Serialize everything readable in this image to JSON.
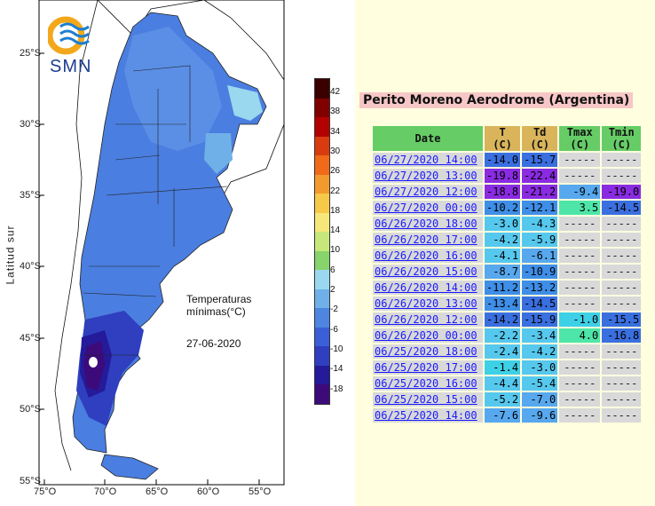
{
  "map": {
    "y_axis_label": "Latitud sur",
    "lat_ticks": [
      "25°S",
      "30°S",
      "35°S",
      "40°S",
      "45°S",
      "50°S",
      "55°S"
    ],
    "lon_ticks": [
      "75°O",
      "70°O",
      "65°O",
      "60°O",
      "55°O"
    ],
    "logo_text": "SMN",
    "legend_title_line1": "Temperaturas",
    "legend_title_line2": "mínimas(°C)",
    "date": "27-06-2020",
    "colorbar_labels": [
      "42",
      "38",
      "34",
      "30",
      "26",
      "22",
      "18",
      "14",
      "10",
      "6",
      "2",
      "-2",
      "-6",
      "-10",
      "-14",
      "-18"
    ],
    "colorbar_colors": [
      "#3a0000",
      "#800000",
      "#b30000",
      "#d93b0f",
      "#f06a19",
      "#f29a2e",
      "#f7c948",
      "#f5e77a",
      "#c6e87a",
      "#86d46b",
      "#9ad8ef",
      "#6fb0e8",
      "#4d85e0",
      "#3a5fd6",
      "#2f3fbf",
      "#241a9a",
      "#3d0a7a"
    ]
  },
  "station": {
    "title": "Perito Moreno Aerodrome (Argentina)",
    "headers": {
      "date": "Date",
      "t": "T",
      "t_unit": "(C)",
      "td": "Td",
      "td_unit": "(C)",
      "tmax": "Tmax",
      "tmax_unit": "(C)",
      "tmin": "Tmin",
      "tmin_unit": "(C)"
    },
    "rows": [
      {
        "date": "06/27/2020",
        "time": "14:00",
        "t": "-14.0",
        "td": "-15.7",
        "tmax": "-----",
        "tmin": "-----"
      },
      {
        "date": "06/27/2020",
        "time": "13:00",
        "t": "-19.8",
        "td": "-22.4",
        "tmax": "-----",
        "tmin": "-----"
      },
      {
        "date": "06/27/2020",
        "time": "12:00",
        "t": "-18.8",
        "td": "-21.2",
        "tmax": "-9.4",
        "tmin": "-19.0"
      },
      {
        "date": "06/27/2020",
        "time": "00:00",
        "t": "-10.2",
        "td": "-12.1",
        "tmax": "3.5",
        "tmin": "-14.5"
      },
      {
        "date": "06/26/2020",
        "time": "18:00",
        "t": "-3.0",
        "td": "-4.3",
        "tmax": "-----",
        "tmin": "-----"
      },
      {
        "date": "06/26/2020",
        "time": "17:00",
        "t": "-4.2",
        "td": "-5.9",
        "tmax": "-----",
        "tmin": "-----"
      },
      {
        "date": "06/26/2020",
        "time": "16:00",
        "t": "-4.1",
        "td": "-6.1",
        "tmax": "-----",
        "tmin": "-----"
      },
      {
        "date": "06/26/2020",
        "time": "15:00",
        "t": "-8.7",
        "td": "-10.9",
        "tmax": "-----",
        "tmin": "-----"
      },
      {
        "date": "06/26/2020",
        "time": "14:00",
        "t": "-11.2",
        "td": "-13.2",
        "tmax": "-----",
        "tmin": "-----"
      },
      {
        "date": "06/26/2020",
        "time": "13:00",
        "t": "-13.4",
        "td": "-14.5",
        "tmax": "-----",
        "tmin": "-----"
      },
      {
        "date": "06/26/2020",
        "time": "12:00",
        "t": "-14.2",
        "td": "-15.9",
        "tmax": "-1.0",
        "tmin": "-15.5"
      },
      {
        "date": "06/26/2020",
        "time": "00:00",
        "t": "-2.2",
        "td": "-3.4",
        "tmax": "4.0",
        "tmin": "-16.8"
      },
      {
        "date": "06/25/2020",
        "time": "18:00",
        "t": "-2.4",
        "td": "-4.2",
        "tmax": "-----",
        "tmin": "-----"
      },
      {
        "date": "06/25/2020",
        "time": "17:00",
        "t": "-1.4",
        "td": "-3.0",
        "tmax": "-----",
        "tmin": "-----"
      },
      {
        "date": "06/25/2020",
        "time": "16:00",
        "t": "-4.4",
        "td": "-5.4",
        "tmax": "-----",
        "tmin": "-----"
      },
      {
        "date": "06/25/2020",
        "time": "15:00",
        "t": "-5.2",
        "td": "-7.0",
        "tmax": "-----",
        "tmin": "-----"
      },
      {
        "date": "06/25/2020",
        "time": "14:00",
        "t": "-7.6",
        "td": "-9.6",
        "tmax": "-----",
        "tmin": "-----"
      }
    ]
  }
}
